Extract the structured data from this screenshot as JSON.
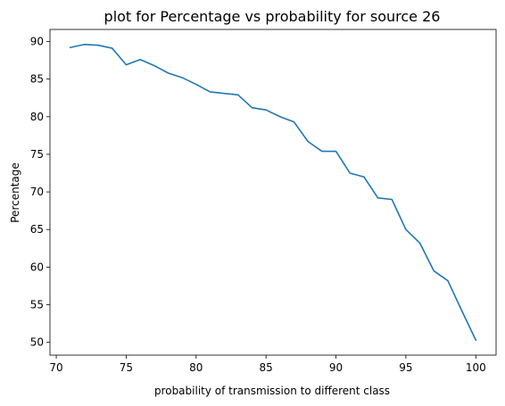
{
  "chart_data": {
    "type": "line",
    "title": "plot for Percentage vs probability for source 26",
    "xlabel": "probability of transmission to different class",
    "ylabel": "Percentage",
    "xlim": [
      69.55,
      101.45
    ],
    "ylim": [
      48.3,
      91.6
    ],
    "xticks": [
      70,
      75,
      80,
      85,
      90,
      95,
      100
    ],
    "yticks": [
      50,
      55,
      60,
      65,
      70,
      75,
      80,
      85,
      90
    ],
    "grid": false,
    "series": [
      {
        "color": "#1f77b4",
        "x": [
          71,
          72,
          73,
          74,
          75,
          76,
          77,
          78,
          79,
          80,
          81,
          82,
          83,
          84,
          85,
          86,
          87,
          88,
          89,
          90,
          91,
          92,
          93,
          94,
          95,
          96,
          97,
          98,
          99,
          100
        ],
        "y": [
          89.2,
          89.6,
          89.5,
          89.1,
          86.9,
          87.6,
          86.8,
          85.8,
          85.2,
          84.3,
          83.3,
          83.1,
          82.9,
          81.2,
          80.9,
          80.0,
          79.3,
          76.7,
          75.4,
          75.4,
          72.5,
          72.0,
          69.2,
          69.0,
          65.0,
          63.2,
          59.5,
          58.2,
          54.2,
          50.3
        ]
      }
    ]
  }
}
